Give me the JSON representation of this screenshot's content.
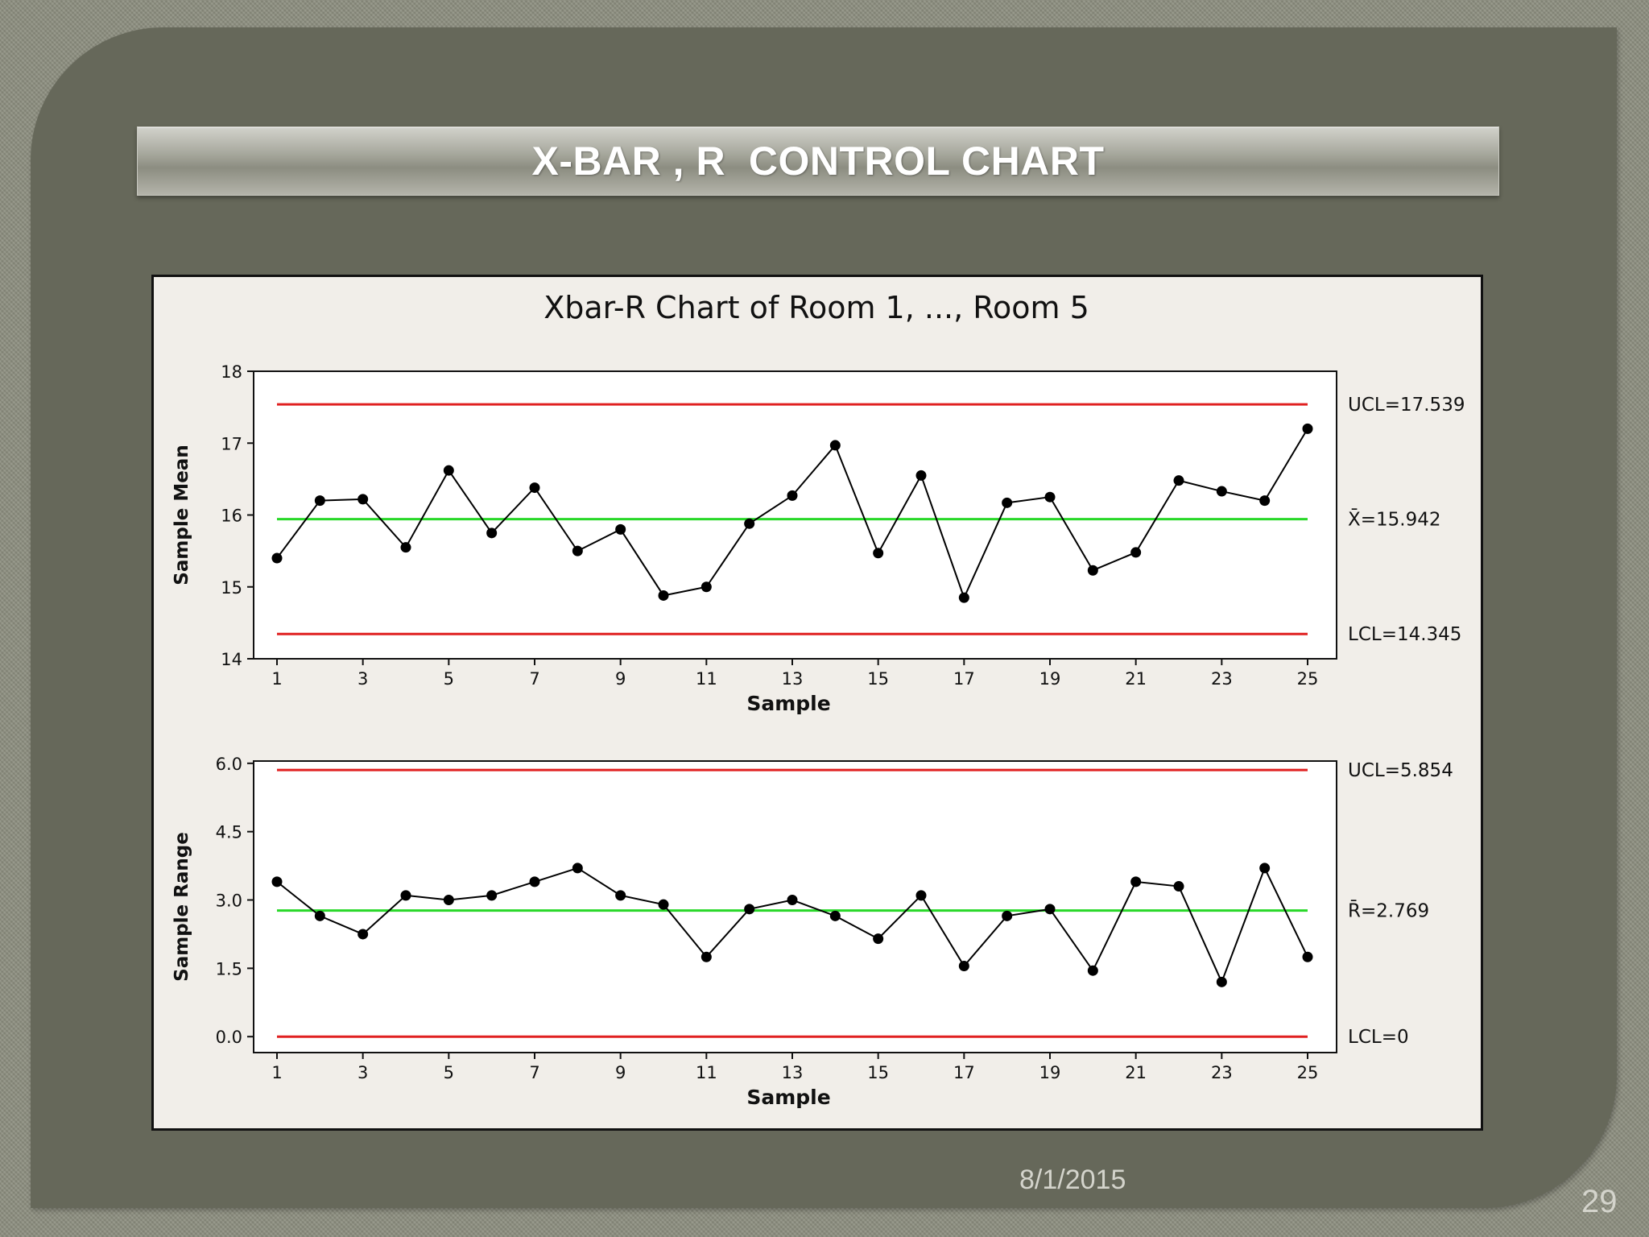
{
  "slide": {
    "title": "X-BAR , R  CONTROL CHART",
    "date": "8/1/2015",
    "page_number": "29"
  },
  "colors": {
    "background": "#66685a",
    "limit_line": "#e02020",
    "center_line": "#28d828",
    "series": "#000000"
  },
  "chart_data": {
    "title": "Xbar-R Chart of Room 1, ..., Room 5",
    "charts": [
      {
        "type": "line",
        "ylabel": "Sample Mean",
        "xlabel": "Sample",
        "ylim": [
          14,
          18
        ],
        "yticks": [
          "14",
          "15",
          "16",
          "17",
          "18"
        ],
        "ytick_values": [
          14,
          15,
          16,
          17,
          18
        ],
        "xticks": [
          1,
          3,
          5,
          7,
          9,
          11,
          13,
          15,
          17,
          19,
          21,
          23,
          25
        ],
        "x": [
          1,
          2,
          3,
          4,
          5,
          6,
          7,
          8,
          9,
          10,
          11,
          12,
          13,
          14,
          15,
          16,
          17,
          18,
          19,
          20,
          21,
          22,
          23,
          24,
          25
        ],
        "values": [
          15.4,
          16.2,
          16.22,
          15.55,
          16.62,
          15.75,
          16.38,
          15.5,
          15.8,
          14.88,
          15.0,
          15.88,
          16.27,
          16.97,
          15.47,
          16.55,
          14.85,
          16.17,
          16.25,
          15.23,
          15.48,
          16.48,
          16.33,
          16.2,
          17.2
        ],
        "ucl": 17.539,
        "center": 15.942,
        "lcl": 14.345,
        "ucl_label": "UCL=17.539",
        "center_label": "X̄=15.942",
        "lcl_label": "LCL=14.345"
      },
      {
        "type": "line",
        "ylabel": "Sample Range",
        "xlabel": "Sample",
        "ylim": [
          -0.35,
          6.05
        ],
        "yticks": [
          "0.0",
          "1.5",
          "3.0",
          "4.5",
          "6.0"
        ],
        "ytick_values": [
          0,
          1.5,
          3,
          4.5,
          6
        ],
        "xticks": [
          1,
          3,
          5,
          7,
          9,
          11,
          13,
          15,
          17,
          19,
          21,
          23,
          25
        ],
        "x": [
          1,
          2,
          3,
          4,
          5,
          6,
          7,
          8,
          9,
          10,
          11,
          12,
          13,
          14,
          15,
          16,
          17,
          18,
          19,
          20,
          21,
          22,
          23,
          24,
          25
        ],
        "values": [
          3.4,
          2.65,
          2.25,
          3.1,
          3.0,
          3.1,
          3.4,
          3.7,
          3.1,
          2.9,
          1.75,
          2.8,
          3.0,
          2.65,
          2.15,
          3.1,
          1.55,
          2.65,
          2.8,
          1.45,
          3.4,
          3.3,
          1.2,
          3.7,
          1.75
        ],
        "ucl": 5.854,
        "center": 2.769,
        "lcl": 0,
        "ucl_label": "UCL=5.854",
        "center_label": "R̄=2.769",
        "lcl_label": "LCL=0"
      }
    ]
  }
}
